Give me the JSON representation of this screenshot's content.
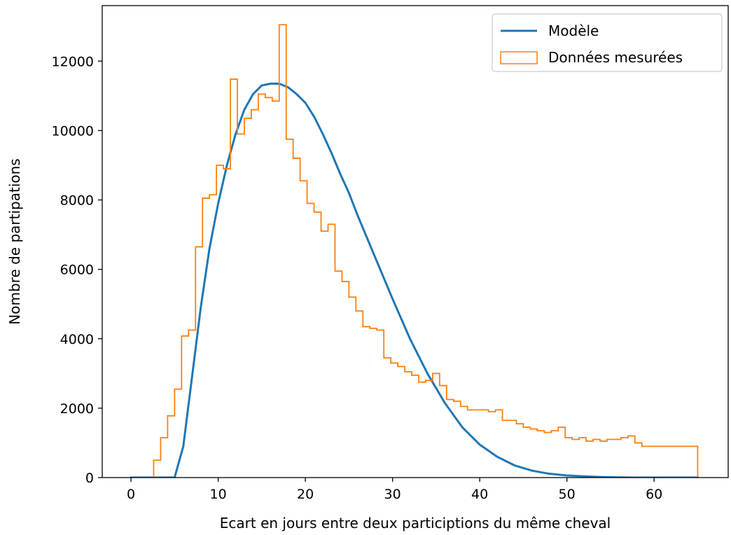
{
  "chart_data": {
    "type": "line",
    "title": "",
    "xlabel": "Ecart en jours entre deux participtions du même cheval",
    "ylabel": "Nombre de partipations",
    "xlim": [
      -3.3,
      68.5
    ],
    "ylim": [
      0,
      13600
    ],
    "x_ticks": [
      0,
      10,
      20,
      30,
      40,
      50,
      60
    ],
    "y_ticks": [
      0,
      2000,
      4000,
      6000,
      8000,
      10000,
      12000
    ],
    "grid": false,
    "legend_position": "top-right",
    "legend": [
      {
        "label": "Modèle",
        "kind": "line",
        "color": "#1f77b4"
      },
      {
        "label": "Données mesurées",
        "kind": "patch",
        "color": "#ff7f0e"
      }
    ],
    "series": [
      {
        "name": "Modèle",
        "kind": "line",
        "color": "#1f77b4",
        "x": [
          0,
          4,
          5,
          6,
          7,
          8,
          9,
          10,
          11,
          12,
          13,
          14,
          15,
          16,
          17,
          18,
          19,
          20,
          21,
          22,
          23,
          24,
          25,
          26,
          27,
          28,
          29,
          30,
          32,
          34,
          36,
          38,
          40,
          42,
          44,
          46,
          48,
          50,
          52,
          54,
          56,
          58,
          60,
          62,
          65
        ],
        "y": [
          0,
          0,
          0,
          900,
          2900,
          4900,
          6600,
          7900,
          9000,
          9900,
          10600,
          11050,
          11300,
          11350,
          11350,
          11250,
          11050,
          10800,
          10400,
          9900,
          9350,
          8750,
          8200,
          7550,
          6950,
          6350,
          5750,
          5150,
          4000,
          3000,
          2150,
          1450,
          950,
          600,
          350,
          200,
          110,
          60,
          35,
          15,
          5,
          0,
          0,
          0,
          0
        ]
      },
      {
        "name": "Données mesurées",
        "kind": "step-histogram",
        "color": "#ff7f0e",
        "bin_edges": [
          2.6,
          3.4,
          4.2,
          5.0,
          5.8,
          6.6,
          7.4,
          8.2,
          9.0,
          9.8,
          10.6,
          11.4,
          12.2,
          13.0,
          13.8,
          14.6,
          15.4,
          16.2,
          17.0,
          17.8,
          18.6,
          19.4,
          20.2,
          21.0,
          21.8,
          22.6,
          23.4,
          24.2,
          25.0,
          25.8,
          26.6,
          27.4,
          28.2,
          29.0,
          29.8,
          30.6,
          31.4,
          32.2,
          33.0,
          33.8,
          34.6,
          35.4,
          36.2,
          37.0,
          37.8,
          38.6,
          39.4,
          40.2,
          41.0,
          41.8,
          42.6,
          43.4,
          44.2,
          45.0,
          45.8,
          46.6,
          47.4,
          48.2,
          49.0,
          49.8,
          50.6,
          51.4,
          52.2,
          53.0,
          53.8,
          54.6,
          55.4,
          56.2,
          57.0,
          57.8,
          58.6,
          59.4,
          60.2,
          61.0,
          61.8,
          62.6,
          63.4,
          64.2,
          65.0
        ],
        "values": [
          500,
          1150,
          1780,
          2550,
          4080,
          4250,
          6650,
          8050,
          8150,
          9000,
          8900,
          11480,
          9900,
          10350,
          10600,
          11050,
          10950,
          10850,
          13050,
          9750,
          9200,
          8550,
          7900,
          7650,
          7100,
          7300,
          5950,
          5650,
          5200,
          4800,
          4350,
          4300,
          4250,
          3450,
          3300,
          3200,
          3050,
          2950,
          2750,
          2800,
          3000,
          2650,
          2250,
          2200,
          2050,
          1950,
          1950,
          1950,
          1900,
          1950,
          1650,
          1650,
          1550,
          1450,
          1400,
          1350,
          1300,
          1350,
          1450,
          1150,
          1100,
          1150,
          1050,
          1100,
          1050,
          1100,
          1100,
          1150,
          1200,
          1000,
          900,
          900,
          900,
          900,
          900,
          900,
          900,
          900
        ]
      }
    ]
  }
}
